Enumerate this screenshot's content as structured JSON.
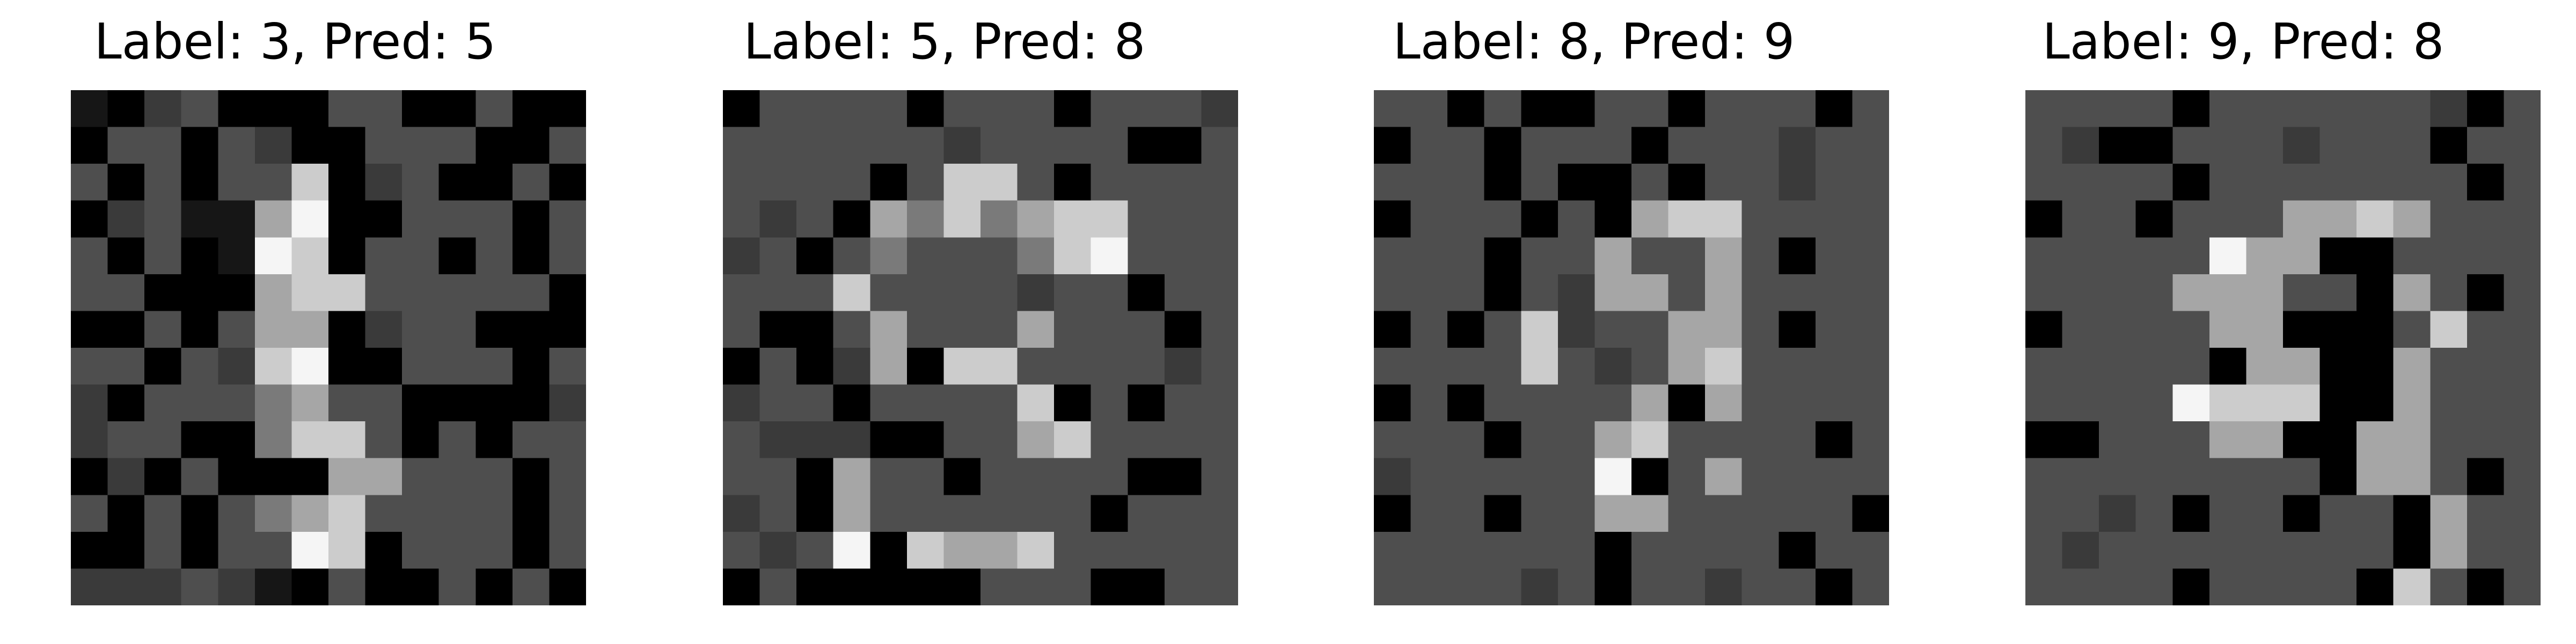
{
  "figure": {
    "panels": [
      {
        "title": "Label: 3, Pred: 5",
        "label": 3,
        "pred": 5
      },
      {
        "title": "Label: 5, Pred: 8",
        "label": 5,
        "pred": 8
      },
      {
        "title": "Label: 8, Pred: 9",
        "label": 8,
        "pred": 9
      },
      {
        "title": "Label: 9, Pred: 8",
        "label": 9,
        "pred": 8
      }
    ]
  }
}
